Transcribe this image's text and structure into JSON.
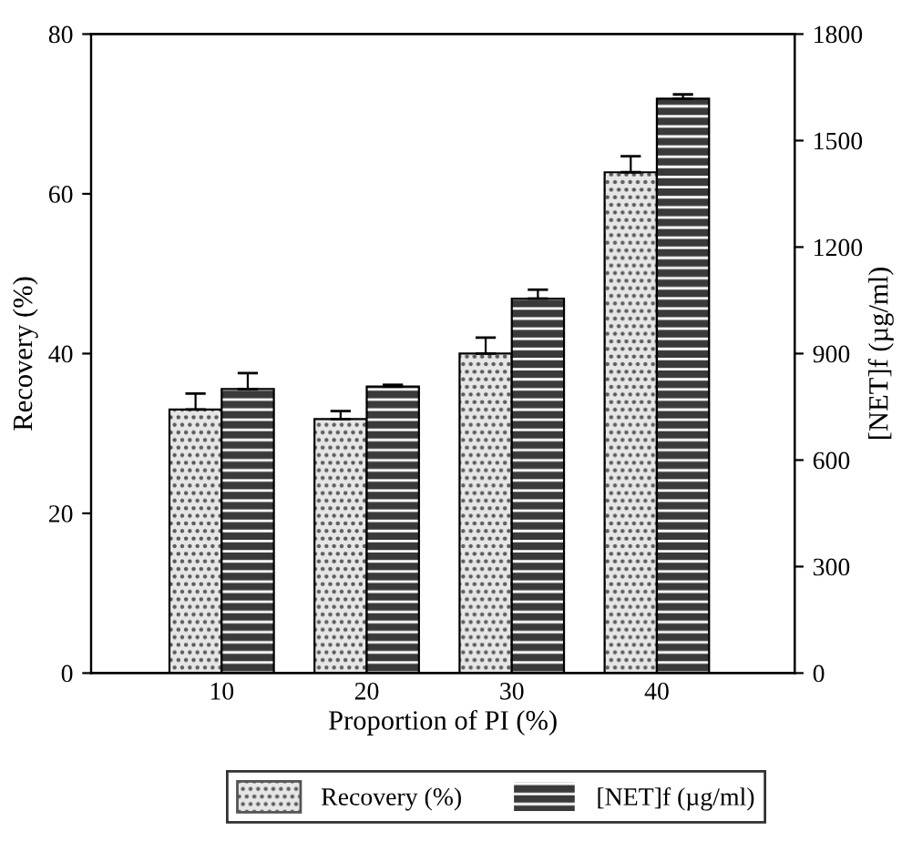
{
  "chart_data": {
    "type": "bar",
    "xlabel": "Proportion of PI (%)",
    "ylabel": "Recovery (%)",
    "y2label": "[NET]f (µg/ml)",
    "categories": [
      "10",
      "20",
      "30",
      "40"
    ],
    "series": [
      {
        "name": "Recovery (%)",
        "color": "#e6e6e6",
        "values": [
          33,
          31.8,
          40,
          62.7
        ],
        "errors": [
          2,
          1,
          2,
          2
        ]
      },
      {
        "name": "[NET]f (µg/ml)",
        "color": "#3a3a3a",
        "values": [
          800,
          807,
          1055,
          1618
        ],
        "errors": [
          45,
          5,
          25,
          12
        ],
        "axis": "y2"
      }
    ],
    "ylim": [
      0,
      80
    ],
    "yticks": [
      0,
      20,
      40,
      60,
      80
    ],
    "y2lim": [
      0,
      1800
    ],
    "y2ticks": [
      0,
      300,
      600,
      900,
      1200,
      1500,
      1800
    ],
    "grid": false,
    "legend": "bottom"
  }
}
